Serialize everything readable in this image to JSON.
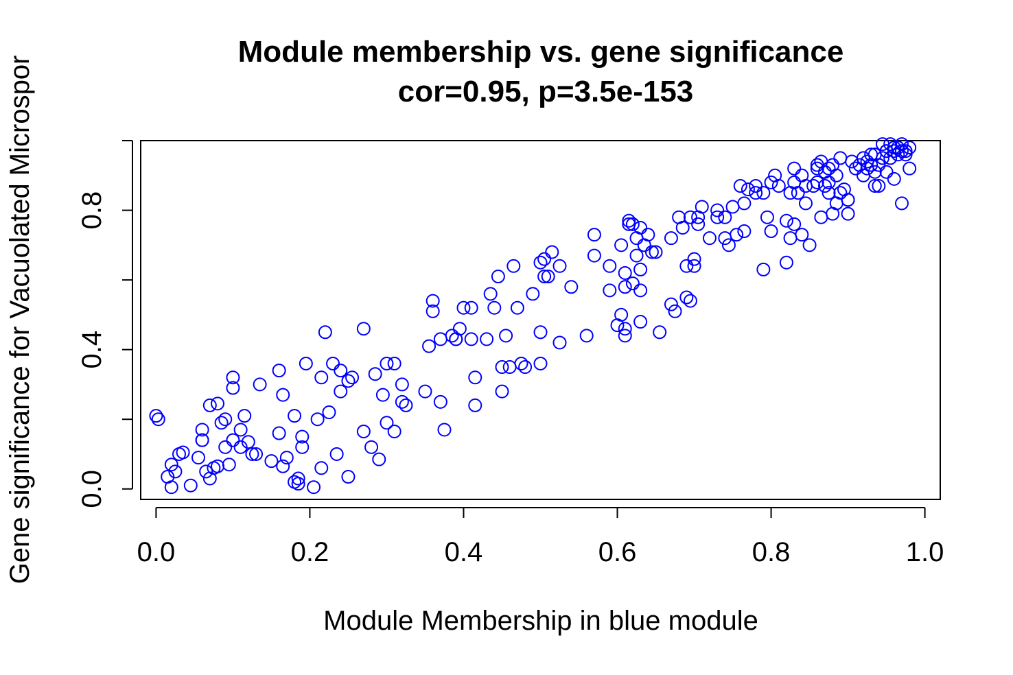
{
  "chart_data": {
    "type": "scatter",
    "title": "Module membership vs. gene significance",
    "subtitle": "cor=0.95, p=3.5e-153",
    "xlabel": "Module Membership in blue module",
    "ylabel": "Gene significance for Vacuolated Microspor",
    "xlim": [
      -0.02,
      1.02
    ],
    "ylim": [
      -0.03,
      1.0
    ],
    "xticks": [
      0.0,
      0.2,
      0.4,
      0.6,
      0.8,
      1.0
    ],
    "xtick_labels": [
      "0.0",
      "0.2",
      "0.4",
      "0.6",
      "0.8",
      "1.0"
    ],
    "yticks": [
      0.0,
      0.2,
      0.4,
      0.6,
      0.8,
      1.0
    ],
    "ytick_labels": [
      "0.0",
      "",
      "0.4",
      "",
      "0.8",
      ""
    ],
    "marker": "open-circle",
    "color": "#0000ff",
    "grid": false,
    "x": [
      0.0,
      0.003,
      0.02,
      0.015,
      0.025,
      0.03,
      0.035,
      0.02,
      0.045,
      0.055,
      0.06,
      0.06,
      0.065,
      0.06,
      0.07,
      0.07,
      0.075,
      0.08,
      0.08,
      0.085,
      0.09,
      0.09,
      0.095,
      0.1,
      0.1,
      0.1,
      0.11,
      0.11,
      0.115,
      0.12,
      0.125,
      0.13,
      0.135,
      0.15,
      0.16,
      0.16,
      0.165,
      0.165,
      0.17,
      0.18,
      0.18,
      0.185,
      0.185,
      0.19,
      0.19,
      0.195,
      0.205,
      0.21,
      0.215,
      0.215,
      0.22,
      0.225,
      0.23,
      0.235,
      0.24,
      0.24,
      0.25,
      0.25,
      0.255,
      0.27,
      0.27,
      0.28,
      0.285,
      0.29,
      0.295,
      0.3,
      0.3,
      0.31,
      0.31,
      0.32,
      0.32,
      0.325,
      0.35,
      0.355,
      0.36,
      0.36,
      0.37,
      0.37,
      0.375,
      0.385,
      0.39,
      0.39,
      0.395,
      0.4,
      0.41,
      0.41,
      0.415,
      0.415,
      0.43,
      0.435,
      0.44,
      0.445,
      0.45,
      0.45,
      0.455,
      0.46,
      0.465,
      0.47,
      0.475,
      0.48,
      0.49,
      0.5,
      0.5,
      0.505,
      0.505,
      0.51,
      0.515,
      0.525,
      0.525,
      0.54,
      0.56,
      0.57,
      0.57,
      0.59,
      0.59,
      0.6,
      0.605,
      0.605,
      0.61,
      0.61,
      0.61,
      0.615,
      0.62,
      0.62,
      0.625,
      0.625,
      0.63,
      0.63,
      0.63,
      0.635,
      0.64,
      0.645,
      0.65,
      0.655,
      0.67,
      0.67,
      0.675,
      0.68,
      0.685,
      0.69,
      0.69,
      0.695,
      0.7,
      0.7,
      0.705,
      0.71,
      0.72,
      0.73,
      0.73,
      0.74,
      0.74,
      0.745,
      0.75,
      0.755,
      0.76,
      0.765,
      0.765,
      0.77,
      0.78,
      0.78,
      0.79,
      0.79,
      0.795,
      0.8,
      0.8,
      0.805,
      0.81,
      0.82,
      0.825,
      0.825,
      0.83,
      0.83,
      0.835,
      0.84,
      0.84,
      0.845,
      0.85,
      0.855,
      0.86,
      0.86,
      0.865,
      0.865,
      0.87,
      0.87,
      0.875,
      0.875,
      0.88,
      0.88,
      0.885,
      0.885,
      0.89,
      0.89,
      0.895,
      0.9,
      0.9,
      0.905,
      0.91,
      0.915,
      0.92,
      0.92,
      0.925,
      0.925,
      0.93,
      0.93,
      0.935,
      0.935,
      0.94,
      0.94,
      0.945,
      0.945,
      0.95,
      0.95,
      0.955,
      0.955,
      0.96,
      0.96,
      0.965,
      0.965,
      0.97,
      0.97,
      0.975,
      0.975,
      0.98,
      0.98,
      0.95,
      0.96,
      0.97,
      0.935,
      0.9,
      0.875,
      0.86,
      0.845,
      0.83,
      0.82,
      0.705,
      0.695,
      0.63,
      0.615,
      0.61,
      0.5
    ],
    "y": [
      0.21,
      0.2,
      0.005,
      0.035,
      0.05,
      0.1,
      0.105,
      0.07,
      0.01,
      0.09,
      0.14,
      0.17,
      0.05,
      0.14,
      0.03,
      0.24,
      0.06,
      0.065,
      0.245,
      0.19,
      0.2,
      0.12,
      0.07,
      0.29,
      0.32,
      0.14,
      0.17,
      0.12,
      0.21,
      0.135,
      0.1,
      0.1,
      0.3,
      0.08,
      0.16,
      0.34,
      0.065,
      0.27,
      0.09,
      0.02,
      0.21,
      0.03,
      0.015,
      0.15,
      0.12,
      0.36,
      0.005,
      0.2,
      0.32,
      0.06,
      0.45,
      0.22,
      0.36,
      0.1,
      0.28,
      0.34,
      0.31,
      0.035,
      0.32,
      0.165,
      0.46,
      0.12,
      0.33,
      0.085,
      0.27,
      0.19,
      0.36,
      0.165,
      0.36,
      0.25,
      0.3,
      0.24,
      0.28,
      0.41,
      0.51,
      0.54,
      0.43,
      0.25,
      0.17,
      0.44,
      0.43,
      0.43,
      0.46,
      0.52,
      0.43,
      0.52,
      0.24,
      0.32,
      0.43,
      0.56,
      0.52,
      0.61,
      0.28,
      0.35,
      0.44,
      0.35,
      0.64,
      0.52,
      0.36,
      0.35,
      0.56,
      0.36,
      0.45,
      0.61,
      0.66,
      0.61,
      0.68,
      0.42,
      0.64,
      0.58,
      0.44,
      0.67,
      0.73,
      0.64,
      0.57,
      0.47,
      0.7,
      0.5,
      0.46,
      0.58,
      0.44,
      0.76,
      0.59,
      0.76,
      0.67,
      0.72,
      0.57,
      0.48,
      0.63,
      0.7,
      0.73,
      0.68,
      0.68,
      0.45,
      0.53,
      0.72,
      0.51,
      0.78,
      0.75,
      0.64,
      0.55,
      0.54,
      0.66,
      0.64,
      0.78,
      0.81,
      0.72,
      0.78,
      0.8,
      0.72,
      0.78,
      0.7,
      0.81,
      0.73,
      0.87,
      0.82,
      0.74,
      0.86,
      0.85,
      0.87,
      0.63,
      0.85,
      0.78,
      0.88,
      0.74,
      0.9,
      0.87,
      0.77,
      0.72,
      0.85,
      0.92,
      0.88,
      0.85,
      0.73,
      0.9,
      0.82,
      0.7,
      0.87,
      0.93,
      0.88,
      0.78,
      0.94,
      0.87,
      0.91,
      0.85,
      0.92,
      0.79,
      0.93,
      0.82,
      0.9,
      0.85,
      0.95,
      0.86,
      0.79,
      0.83,
      0.94,
      0.92,
      0.93,
      0.9,
      0.95,
      0.94,
      0.92,
      0.96,
      0.93,
      0.91,
      0.96,
      0.87,
      0.93,
      0.95,
      0.99,
      0.91,
      0.97,
      0.95,
      0.99,
      0.97,
      0.98,
      0.96,
      0.98,
      0.99,
      0.97,
      0.96,
      0.97,
      0.98,
      0.92,
      0.97,
      0.89,
      0.82,
      0.87,
      0.83,
      0.88,
      0.92,
      0.87,
      0.76,
      0.65,
      0.76,
      0.78,
      0.75,
      0.77,
      0.62,
      0.65
    ]
  }
}
